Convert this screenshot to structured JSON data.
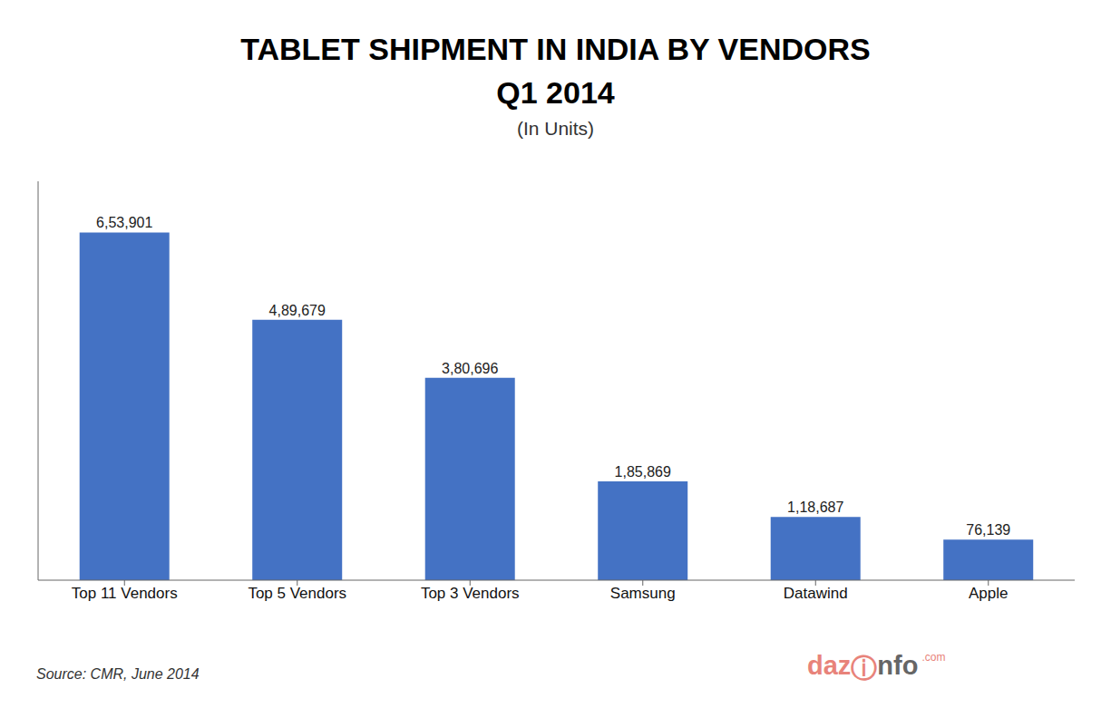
{
  "chart_data": {
    "type": "bar",
    "title": [
      "TABLET SHIPMENT IN INDIA BY VENDORS",
      "Q1 2014"
    ],
    "subtitle": "(In Units)",
    "source": "Source: CMR, June 2014",
    "annotations": [
      "daz",
      "ⓘ",
      "nfo",
      ".com"
    ],
    "categories": [
      "Top 11 Vendors",
      "Top 5 Vendors",
      "Top 3 Vendors",
      "Samsung",
      "Datawind",
      "Apple"
    ],
    "values": [
      653901,
      489679,
      380696,
      185869,
      118687,
      76139
    ],
    "value_labels": [
      "6,53,901",
      "4,89,679",
      "3,80,696",
      "1,85,869",
      "1,18,687",
      "76,139"
    ],
    "data_labels": true,
    "color": "#4472C4",
    "ylim": [
      0,
      750000
    ],
    "tick_labels": "x",
    "grid": false
  }
}
